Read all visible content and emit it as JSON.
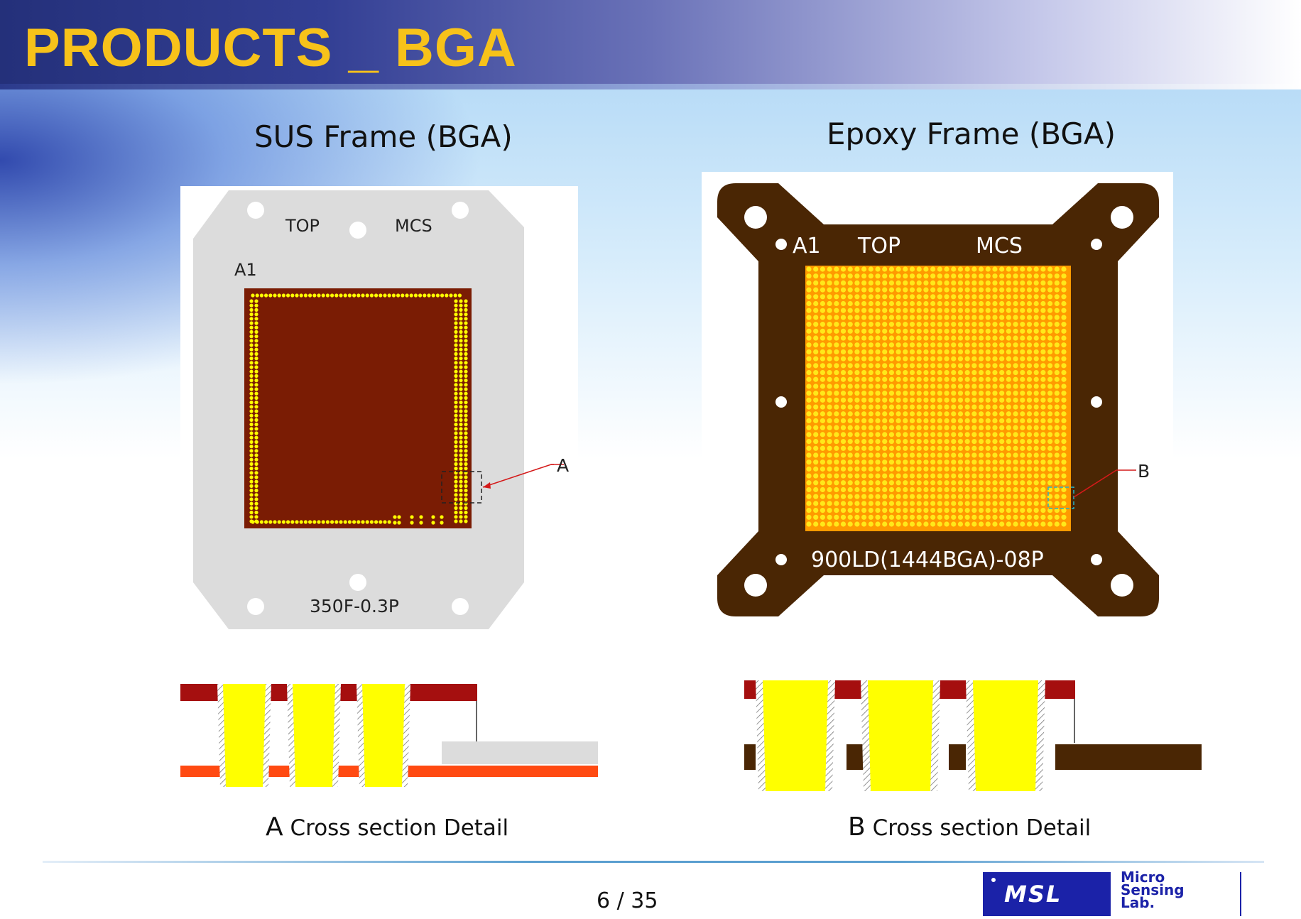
{
  "slide": {
    "title": "PRODUCTS _ BGA",
    "page_number": "6 / 35"
  },
  "left_panel": {
    "heading": "SUS Frame (BGA)",
    "label_top": "TOP",
    "label_mcs": "MCS",
    "label_a1": "A1",
    "part_number": "350F-0.3P",
    "callout": "A"
  },
  "right_panel": {
    "heading": "Epoxy Frame (BGA)",
    "label_a1": "A1",
    "label_top": "TOP",
    "label_mcs": "MCS",
    "part_number": "900LD(1444BGA)-08P",
    "callout": "B"
  },
  "cross_section_a": {
    "letter": "A",
    "caption": "Cross section Detail"
  },
  "cross_section_b": {
    "letter": "B",
    "caption": "Cross section Detail"
  },
  "logo": {
    "mark": "MSL",
    "line1": "Micro",
    "line2": "Sensing",
    "line3": "Lab."
  },
  "colors": {
    "title": "#f7c21a",
    "header_blue": "#24307a",
    "sus_frame": "#dcdcdc",
    "sus_substrate": "#7a1c04",
    "pin_yellow": "#ffff00",
    "epoxy_frame": "#4a2604",
    "cross_red": "#a50f0f",
    "cross_orange": "#ff4a12",
    "logo_blue": "#1b22a8"
  }
}
